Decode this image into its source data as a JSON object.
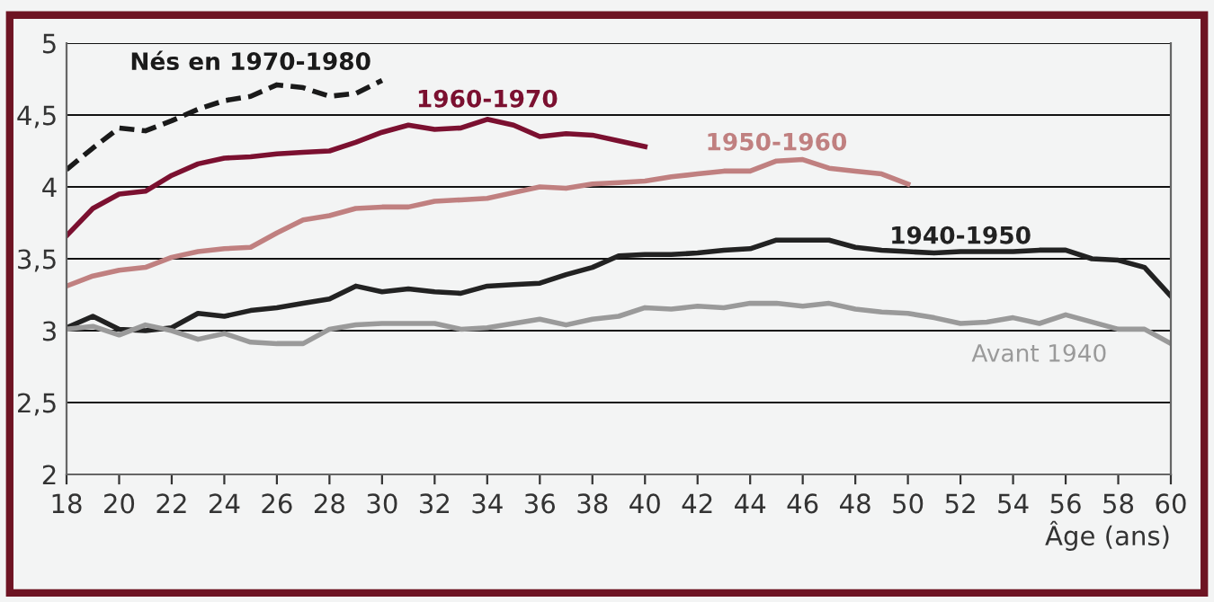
{
  "chart_data": {
    "type": "line",
    "xlabel": "Âge (ans)",
    "xlim": [
      18,
      60
    ],
    "xticks": [
      18,
      20,
      22,
      24,
      26,
      28,
      30,
      32,
      34,
      36,
      38,
      40,
      42,
      44,
      46,
      48,
      50,
      52,
      54,
      56,
      58,
      60
    ],
    "ylim": [
      2,
      5
    ],
    "yticks": [
      2,
      {
        "value": 2.5,
        "label": "2,5"
      },
      3,
      {
        "value": 3.5,
        "label": "3,5"
      },
      4,
      {
        "value": 4.5,
        "label": "4,5"
      },
      5
    ],
    "grid": "y",
    "legend": false,
    "marker": "none",
    "series": [
      {
        "name": "Nés en 1970-1980",
        "color": "#1a1a1a",
        "line_style": "dashed",
        "x": [
          18,
          19,
          20,
          21,
          22,
          23,
          24,
          25,
          26,
          27,
          28,
          29,
          30
        ],
        "values": [
          4.12,
          4.27,
          4.41,
          4.39,
          4.46,
          4.54,
          4.6,
          4.63,
          4.71,
          4.69,
          4.63,
          4.65,
          4.74
        ]
      },
      {
        "name": "1960-1970",
        "color": "#7b1030",
        "line_style": "solid",
        "x": [
          18,
          19,
          20,
          21,
          22,
          23,
          24,
          25,
          26,
          27,
          28,
          29,
          30,
          31,
          32,
          33,
          34,
          35,
          36,
          37,
          38,
          39,
          40
        ],
        "values": [
          3.66,
          3.85,
          3.95,
          3.97,
          4.08,
          4.16,
          4.2,
          4.21,
          4.23,
          4.24,
          4.25,
          4.31,
          4.38,
          4.43,
          4.4,
          4.41,
          4.47,
          4.43,
          4.35,
          4.37,
          4.36,
          4.32,
          4.28
        ]
      },
      {
        "name": "1950-1960",
        "color": "#c08080",
        "line_style": "solid",
        "x": [
          18,
          19,
          20,
          21,
          22,
          23,
          24,
          25,
          26,
          27,
          28,
          29,
          30,
          31,
          32,
          33,
          34,
          35,
          36,
          37,
          38,
          39,
          40,
          41,
          42,
          43,
          44,
          45,
          46,
          47,
          48,
          49,
          50
        ],
        "values": [
          3.31,
          3.38,
          3.42,
          3.44,
          3.51,
          3.55,
          3.57,
          3.58,
          3.68,
          3.77,
          3.8,
          3.85,
          3.86,
          3.86,
          3.9,
          3.91,
          3.92,
          3.96,
          4.0,
          3.99,
          4.02,
          4.03,
          4.04,
          4.07,
          4.09,
          4.11,
          4.11,
          4.18,
          4.19,
          4.13,
          4.11,
          4.09,
          4.02
        ]
      },
      {
        "name": "1940-1950",
        "color": "#222222",
        "line_style": "solid",
        "x": [
          18,
          19,
          20,
          21,
          22,
          23,
          24,
          25,
          26,
          27,
          28,
          29,
          30,
          31,
          32,
          33,
          34,
          35,
          36,
          37,
          38,
          39,
          40,
          41,
          42,
          43,
          44,
          45,
          46,
          47,
          48,
          49,
          50,
          51,
          52,
          53,
          54,
          55,
          56,
          57,
          58,
          59,
          60
        ],
        "values": [
          3.02,
          3.1,
          3.01,
          3.0,
          3.02,
          3.12,
          3.1,
          3.14,
          3.16,
          3.19,
          3.22,
          3.31,
          3.27,
          3.29,
          3.27,
          3.26,
          3.31,
          3.32,
          3.33,
          3.39,
          3.44,
          3.52,
          3.53,
          3.53,
          3.54,
          3.56,
          3.57,
          3.63,
          3.63,
          3.63,
          3.58,
          3.56,
          3.55,
          3.54,
          3.55,
          3.55,
          3.55,
          3.56,
          3.56,
          3.5,
          3.49,
          3.44,
          3.24
        ]
      },
      {
        "name": "Avant 1940",
        "color": "#9a9a9a",
        "line_style": "solid",
        "x": [
          18,
          19,
          20,
          21,
          22,
          23,
          24,
          25,
          26,
          27,
          28,
          29,
          30,
          31,
          32,
          33,
          34,
          35,
          36,
          37,
          38,
          39,
          40,
          41,
          42,
          43,
          44,
          45,
          46,
          47,
          48,
          49,
          50,
          51,
          52,
          53,
          54,
          55,
          56,
          57,
          58,
          59,
          60
        ],
        "values": [
          3.01,
          3.03,
          2.97,
          3.04,
          3.0,
          2.94,
          2.98,
          2.92,
          2.91,
          2.91,
          3.01,
          3.04,
          3.05,
          3.05,
          3.05,
          3.01,
          3.02,
          3.05,
          3.08,
          3.04,
          3.08,
          3.1,
          3.16,
          3.15,
          3.17,
          3.16,
          3.19,
          3.19,
          3.17,
          3.19,
          3.15,
          3.13,
          3.12,
          3.09,
          3.05,
          3.06,
          3.09,
          3.05,
          3.11,
          3.06,
          3.01,
          3.01,
          2.91
        ]
      }
    ]
  }
}
